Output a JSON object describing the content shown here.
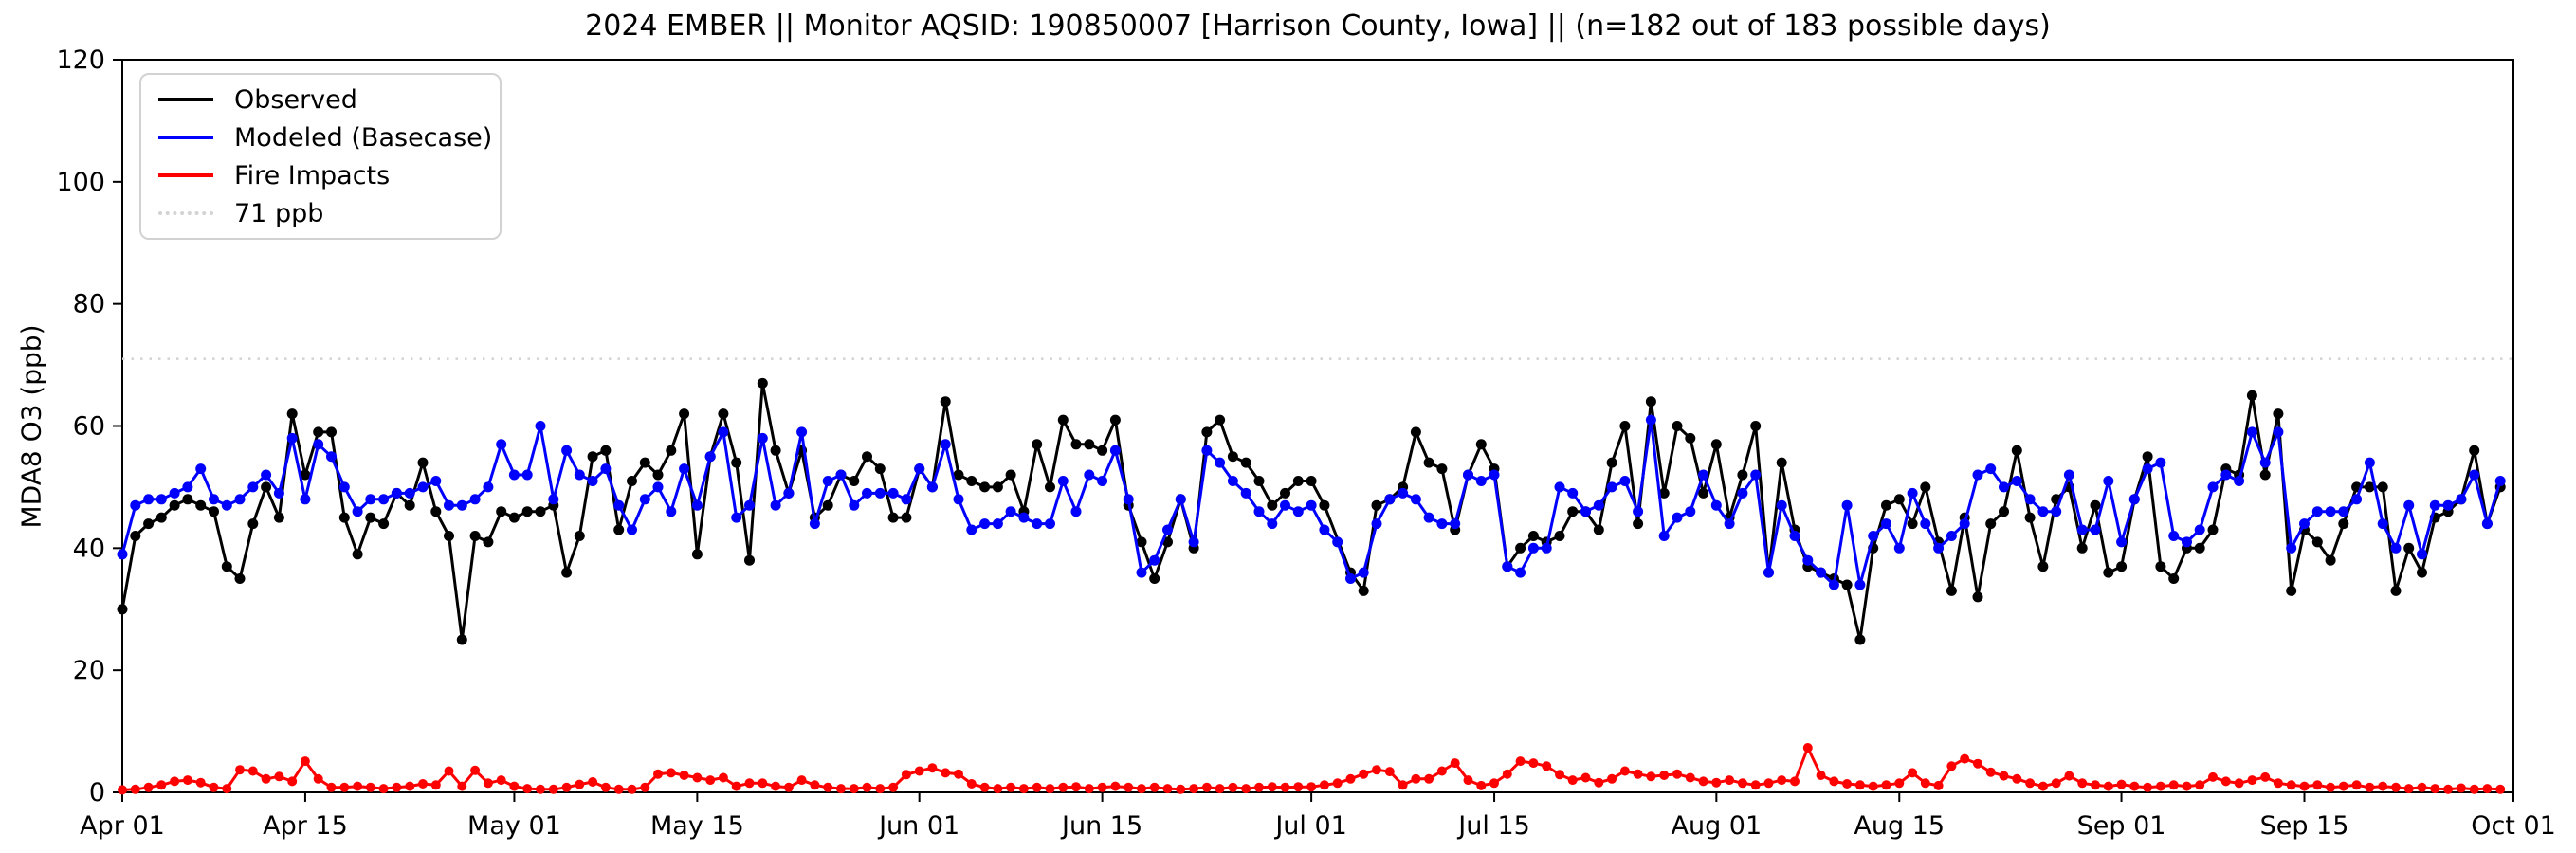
{
  "chart_data": {
    "type": "line",
    "title": "2024 EMBER || Monitor AQSID: 190850007 [Harrison County, Iowa] || (n=182 out of 183 possible days)",
    "monitor_aqsid": "190850007",
    "county": "Harrison County, Iowa",
    "n_days_with_data": 182,
    "n_possible_days": 183,
    "xlabel": "",
    "ylabel": "MDA8 O3 (ppb)",
    "ylim": [
      0,
      120
    ],
    "yticks": [
      0,
      20,
      40,
      60,
      80,
      100,
      120
    ],
    "n_days": 183,
    "x_unit": "days since Apr 01 (Apr 01 - Sep 30, 2024)",
    "xticks": [
      {
        "label": "Apr 01",
        "day": 0
      },
      {
        "label": "Apr 15",
        "day": 14
      },
      {
        "label": "May 01",
        "day": 30
      },
      {
        "label": "May 15",
        "day": 44
      },
      {
        "label": "Jun 01",
        "day": 61
      },
      {
        "label": "Jun 15",
        "day": 75
      },
      {
        "label": "Jul 01",
        "day": 91
      },
      {
        "label": "Jul 15",
        "day": 105
      },
      {
        "label": "Aug 01",
        "day": 122
      },
      {
        "label": "Aug 15",
        "day": 136
      },
      {
        "label": "Sep 01",
        "day": 153
      },
      {
        "label": "Sep 15",
        "day": 167
      },
      {
        "label": "Oct 01",
        "day": 183
      }
    ],
    "threshold_line": {
      "value": 71,
      "label": "71 ppb",
      "color": "#d3d3d3",
      "style": "dotted"
    },
    "series": [
      {
        "name": "Observed",
        "color": "#000000",
        "line_width": 3,
        "marker_r": 5.5,
        "values": [
          30,
          42,
          44,
          45,
          47,
          48,
          47,
          46,
          37,
          35,
          44,
          50,
          45,
          62,
          52,
          59,
          59,
          45,
          39,
          45,
          44,
          49,
          47,
          54,
          46,
          42,
          25,
          42,
          41,
          46,
          45,
          46,
          46,
          47,
          36,
          42,
          55,
          56,
          43,
          51,
          54,
          52,
          56,
          62,
          39,
          55,
          62,
          54,
          38,
          67,
          56,
          49,
          56,
          45,
          47,
          52,
          51,
          55,
          53,
          45,
          45,
          53,
          50,
          64,
          52,
          51,
          50,
          50,
          52,
          46,
          57,
          50,
          61,
          57,
          57,
          56,
          61,
          47,
          41,
          35,
          41,
          48,
          40,
          59,
          61,
          55,
          54,
          51,
          47,
          49,
          51,
          51,
          47,
          null,
          36,
          33,
          47,
          48,
          50,
          59,
          54,
          53,
          43,
          52,
          57,
          53,
          37,
          40,
          42,
          41,
          42,
          46,
          46,
          43,
          54,
          60,
          44,
          64,
          49,
          60,
          58,
          49,
          57,
          45,
          52,
          60,
          36,
          54,
          43,
          37,
          36,
          35,
          34,
          25,
          40,
          47,
          48,
          44,
          50,
          41,
          33,
          45,
          32,
          44,
          46,
          56,
          45,
          37,
          48,
          50,
          40,
          47,
          36,
          37,
          48,
          55,
          37,
          35,
          40,
          40,
          43,
          53,
          52,
          65,
          52,
          62,
          33,
          43,
          41,
          38,
          44,
          50,
          50,
          50,
          33,
          40,
          36,
          45,
          46,
          48,
          56,
          44,
          50
        ]
      },
      {
        "name": "Modeled (Basecase)",
        "color": "#0000ff",
        "line_width": 3,
        "marker_r": 5.5,
        "values": [
          39,
          47,
          48,
          48,
          49,
          50,
          53,
          48,
          47,
          48,
          50,
          52,
          49,
          58,
          48,
          57,
          55,
          50,
          46,
          48,
          48,
          49,
          49,
          50,
          51,
          47,
          47,
          48,
          50,
          57,
          52,
          52,
          60,
          48,
          56,
          52,
          51,
          53,
          47,
          43,
          48,
          50,
          46,
          53,
          47,
          55,
          59,
          45,
          47,
          58,
          47,
          49,
          59,
          44,
          51,
          52,
          47,
          49,
          49,
          49,
          48,
          53,
          50,
          57,
          48,
          43,
          44,
          44,
          46,
          45,
          44,
          44,
          51,
          46,
          52,
          51,
          56,
          48,
          36,
          38,
          43,
          48,
          41,
          56,
          54,
          51,
          49,
          46,
          44,
          47,
          46,
          47,
          43,
          41,
          35,
          36,
          44,
          48,
          49,
          48,
          45,
          44,
          44,
          52,
          51,
          52,
          37,
          36,
          40,
          40,
          50,
          49,
          46,
          47,
          50,
          51,
          46,
          61,
          42,
          45,
          46,
          52,
          47,
          44,
          49,
          52,
          36,
          47,
          42,
          38,
          36,
          34,
          47,
          34,
          42,
          44,
          40,
          49,
          44,
          40,
          42,
          44,
          52,
          53,
          50,
          51,
          48,
          46,
          46,
          52,
          43,
          43,
          51,
          41,
          48,
          53,
          54,
          42,
          41,
          43,
          50,
          52,
          51,
          59,
          54,
          59,
          40,
          44,
          46,
          46,
          46,
          48,
          54,
          44,
          40,
          47,
          39,
          47,
          47,
          48,
          52,
          44,
          51
        ]
      },
      {
        "name": "Fire Impacts",
        "color": "#ff0000",
        "line_width": 3,
        "marker_r": 5,
        "values": [
          0.4,
          0.5,
          0.8,
          1.2,
          1.8,
          2,
          1.6,
          0.8,
          0.6,
          3.7,
          3.5,
          2.2,
          2.6,
          1.8,
          5.1,
          2.2,
          0.8,
          0.8,
          1,
          0.8,
          0.6,
          0.8,
          1,
          1.4,
          1.2,
          3.5,
          1,
          3.6,
          1.5,
          2,
          1,
          0.6,
          0.5,
          0.5,
          0.8,
          1.3,
          1.7,
          0.8,
          0.5,
          0.5,
          0.8,
          3,
          3.2,
          2.8,
          2.4,
          2,
          2.4,
          1,
          1.5,
          1.5,
          1,
          0.8,
          2,
          1.2,
          0.8,
          0.6,
          0.6,
          0.8,
          0.6,
          0.8,
          2.9,
          3.5,
          4,
          3.2,
          3,
          1.4,
          0.8,
          0.6,
          0.8,
          0.6,
          0.8,
          0.6,
          0.8,
          0.9,
          0.6,
          0.8,
          1,
          0.8,
          0.6,
          0.8,
          0.6,
          0.5,
          0.6,
          0.8,
          0.6,
          0.8,
          0.6,
          0.8,
          0.9,
          0.8,
          0.9,
          0.9,
          1.2,
          1.5,
          2.2,
          3,
          3.7,
          3.4,
          1.2,
          2.2,
          2.2,
          3.5,
          4.8,
          2,
          1.1,
          1.5,
          3,
          5.1,
          4.8,
          4.3,
          2.9,
          2,
          2.4,
          1.6,
          2.2,
          3.5,
          3,
          2.6,
          2.8,
          3,
          2.4,
          1.8,
          1.6,
          2,
          1.5,
          1.2,
          1.5,
          2,
          1.8,
          7.3,
          2.8,
          1.8,
          1.4,
          1.2,
          1,
          1.2,
          1.5,
          3.2,
          1.5,
          1.1,
          4.3,
          5.5,
          4.7,
          3.3,
          2.7,
          2.2,
          1.5,
          1,
          1.5,
          2.7,
          1.5,
          1.2,
          1,
          1.3,
          1,
          0.8,
          1,
          1.2,
          1,
          1.2,
          2.5,
          1.8,
          1.5,
          2,
          2.5,
          1.5,
          1.2,
          1,
          1.2,
          0.8,
          1,
          1.2,
          0.8,
          1,
          0.8,
          0.6,
          0.8,
          0.6,
          0.5,
          0.7,
          0.5,
          0.6,
          0.5
        ]
      }
    ],
    "legend_position": "upper left",
    "grid": false,
    "plot_bg": "#ffffff",
    "spine_color": "#000000"
  }
}
